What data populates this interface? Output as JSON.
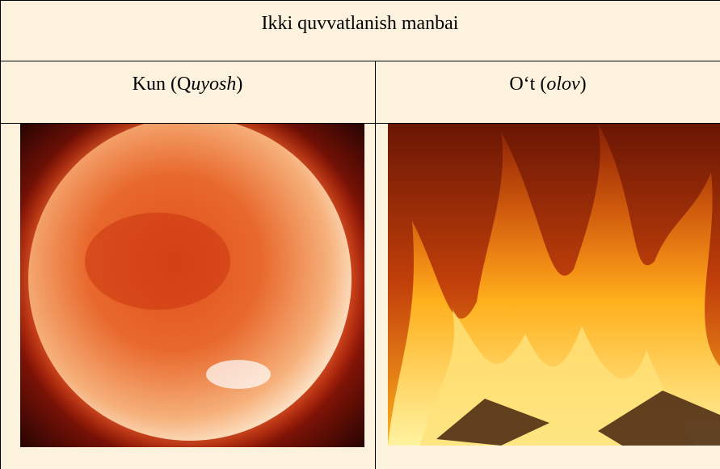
{
  "table": {
    "title": "Ikki quvvatlanish manbai",
    "columns": [
      {
        "prefix": "Kun (Q",
        "italic": "uyosh",
        "suffix": ")"
      },
      {
        "prefix": "O‘t (",
        "italic": "olov",
        "suffix": ")"
      }
    ]
  }
}
